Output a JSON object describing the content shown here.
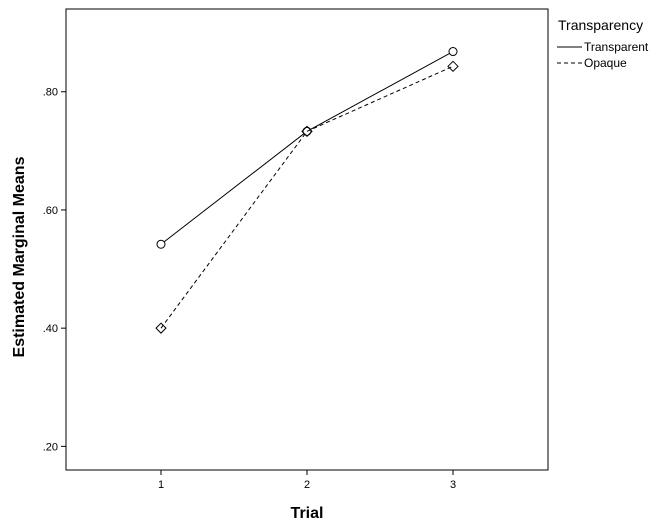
{
  "chart_data": {
    "type": "line",
    "title": "",
    "xlabel": "Trial",
    "ylabel": "Estimated Marginal Means",
    "categories": [
      "1",
      "2",
      "3"
    ],
    "yticks": [
      ".20",
      ".40",
      ".60",
      ".80"
    ],
    "ylim": [
      0.16,
      0.94
    ],
    "grid": false,
    "legend": {
      "title": "Transparency",
      "position": "top-right"
    },
    "series": [
      {
        "name": "Transparent",
        "values": [
          0.542,
          0.733,
          0.868
        ],
        "line": "solid",
        "marker": "circle"
      },
      {
        "name": "Opaque",
        "values": [
          0.4,
          0.733,
          0.843
        ],
        "line": "dashed",
        "marker": "diamond"
      }
    ]
  }
}
